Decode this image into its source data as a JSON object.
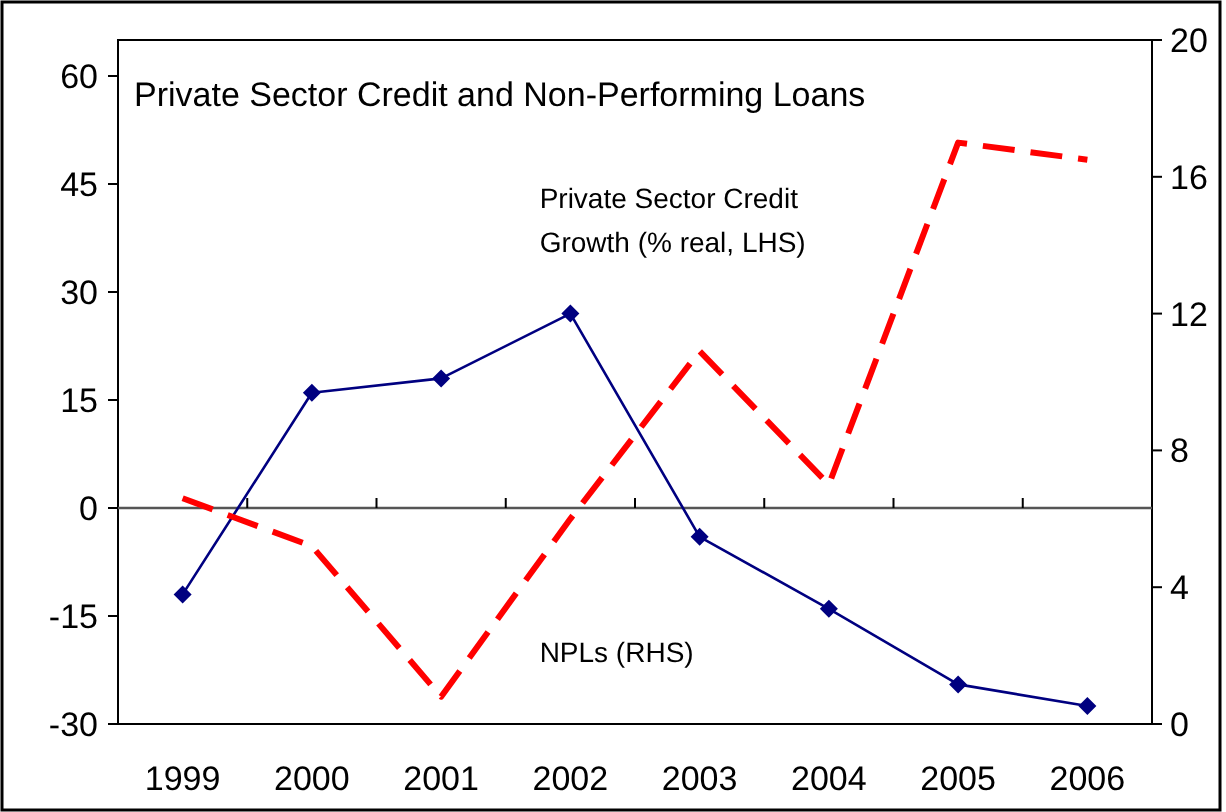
{
  "chart_data": {
    "type": "line",
    "title": "Private Sector Credit and Non-Performing Loans",
    "categories": [
      "1999",
      "2000",
      "2001",
      "2002",
      "2003",
      "2004",
      "2005",
      "2006"
    ],
    "series": [
      {
        "name": "Private Sector Credit Growth (% real, LHS)",
        "color": "#000080",
        "marker": "diamond",
        "line_style": "solid",
        "values": [
          -12,
          16,
          18,
          27,
          -4,
          -14,
          -24.5,
          -27.5
        ]
      },
      {
        "name": "NPLs (RHS)",
        "color": "#ff0000",
        "marker": "none",
        "line_style": "dashed",
        "axis": "y2",
        "values": [
          6.6,
          5.2,
          0.8,
          6.0,
          10.9,
          7.0,
          17.0,
          16.5
        ]
      }
    ],
    "ylim": [
      -30,
      65
    ],
    "yticks": [
      -30,
      -15,
      0,
      15,
      30,
      45,
      60
    ],
    "y2lim": [
      0,
      20
    ],
    "y2ticks": [
      0,
      4,
      8,
      12,
      16,
      20
    ]
  }
}
